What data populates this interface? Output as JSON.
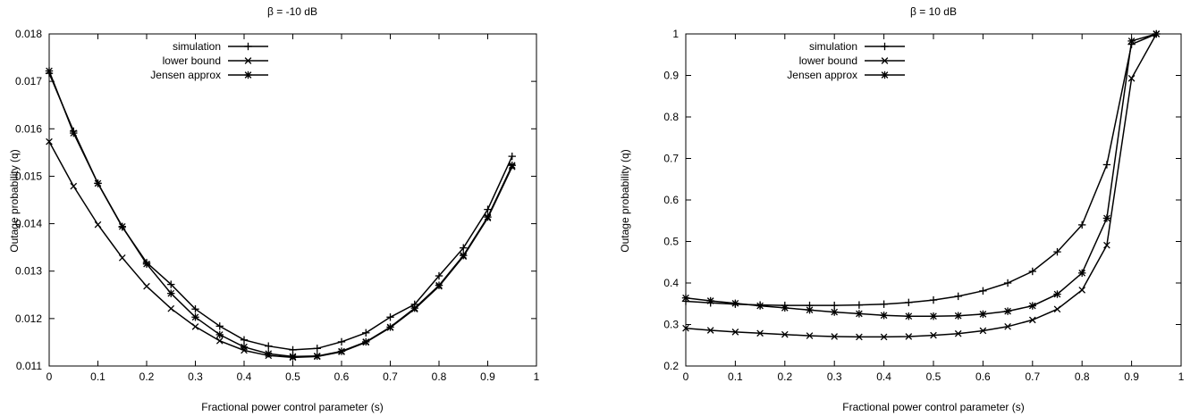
{
  "chart_data": [
    {
      "type": "line",
      "title": "β = -10 dB",
      "xlabel": "Fractional power control parameter (s)",
      "ylabel": "Outage probability (q)",
      "xlim": [
        0,
        1
      ],
      "ylim": [
        0.011,
        0.018
      ],
      "xticks": [
        0,
        0.1,
        0.2,
        0.3,
        0.4,
        0.5,
        0.6,
        0.7,
        0.8,
        0.9,
        1
      ],
      "xtick_labels": [
        "0",
        "0.1",
        "0.2",
        "0.3",
        "0.4",
        "0.5",
        "0.6",
        "0.7",
        "0.8",
        "0.9",
        "1"
      ],
      "yticks": [
        0.011,
        0.012,
        0.013,
        0.014,
        0.015,
        0.016,
        0.017,
        0.018
      ],
      "ytick_labels": [
        "0.011",
        "0.012",
        "0.013",
        "0.014",
        "0.015",
        "0.016",
        "0.017",
        "0.018"
      ],
      "grid": false,
      "legend_position": "top-left",
      "x": [
        0,
        0.05,
        0.1,
        0.15,
        0.2,
        0.25,
        0.3,
        0.35,
        0.4,
        0.45,
        0.5,
        0.55,
        0.6,
        0.65,
        0.7,
        0.75,
        0.8,
        0.85,
        0.9,
        0.95
      ],
      "series": [
        {
          "name": "simulation",
          "marker": "plus",
          "values": [
            0.01717,
            0.01595,
            0.01485,
            0.01393,
            0.01318,
            0.01272,
            0.0122,
            0.01184,
            0.01155,
            0.01142,
            0.01134,
            0.01137,
            0.01151,
            0.0117,
            0.01203,
            0.0123,
            0.0129,
            0.01349,
            0.0143,
            0.01542
          ]
        },
        {
          "name": "lower bound",
          "marker": "cross",
          "values": [
            0.01573,
            0.01479,
            0.01398,
            0.01328,
            0.01268,
            0.01221,
            0.01183,
            0.01153,
            0.01133,
            0.01122,
            0.01118,
            0.0112,
            0.0113,
            0.0115,
            0.01181,
            0.0122,
            0.01268,
            0.01331,
            0.01412,
            0.0152
          ]
        },
        {
          "name": "Jensen approx",
          "marker": "star",
          "values": [
            0.01722,
            0.01591,
            0.01485,
            0.01394,
            0.01315,
            0.01253,
            0.01203,
            0.01166,
            0.0114,
            0.01126,
            0.0112,
            0.01121,
            0.01131,
            0.01151,
            0.01182,
            0.01222,
            0.0127,
            0.01333,
            0.01414,
            0.01523
          ]
        }
      ]
    },
    {
      "type": "line",
      "title": "β = 10 dB",
      "xlabel": "Fractional power control parameter (s)",
      "ylabel": "Outage probability (q)",
      "xlim": [
        0,
        1
      ],
      "ylim": [
        0.2,
        1
      ],
      "xticks": [
        0,
        0.1,
        0.2,
        0.3,
        0.4,
        0.5,
        0.6,
        0.7,
        0.8,
        0.9,
        1
      ],
      "xtick_labels": [
        "0",
        "0.1",
        "0.2",
        "0.3",
        "0.4",
        "0.5",
        "0.6",
        "0.7",
        "0.8",
        "0.9",
        "1"
      ],
      "yticks": [
        0.2,
        0.3,
        0.4,
        0.5,
        0.6,
        0.7,
        0.8,
        0.9,
        1
      ],
      "ytick_labels": [
        "0.2",
        "0.3",
        "0.4",
        "0.5",
        "0.6",
        "0.7",
        "0.8",
        "0.9",
        "1"
      ],
      "grid": false,
      "legend_position": "top-left",
      "x": [
        0,
        0.05,
        0.1,
        0.15,
        0.2,
        0.25,
        0.3,
        0.35,
        0.4,
        0.45,
        0.5,
        0.55,
        0.6,
        0.65,
        0.7,
        0.75,
        0.8,
        0.85,
        0.9,
        0.95
      ],
      "series": [
        {
          "name": "simulation",
          "marker": "plus",
          "values": [
            0.356,
            0.352,
            0.349,
            0.347,
            0.346,
            0.346,
            0.346,
            0.347,
            0.349,
            0.353,
            0.359,
            0.368,
            0.381,
            0.4,
            0.428,
            0.475,
            0.54,
            0.685,
            0.975,
            1.0
          ]
        },
        {
          "name": "lower bound",
          "marker": "cross",
          "values": [
            0.291,
            0.286,
            0.282,
            0.279,
            0.276,
            0.273,
            0.271,
            0.27,
            0.27,
            0.271,
            0.274,
            0.278,
            0.285,
            0.295,
            0.311,
            0.337,
            0.383,
            0.491,
            0.893,
            1.0
          ]
        },
        {
          "name": "Jensen approx",
          "marker": "star",
          "values": [
            0.364,
            0.357,
            0.351,
            0.345,
            0.34,
            0.335,
            0.33,
            0.326,
            0.322,
            0.32,
            0.32,
            0.321,
            0.325,
            0.332,
            0.345,
            0.373,
            0.424,
            0.556,
            0.983,
            1.0
          ]
        }
      ]
    }
  ]
}
